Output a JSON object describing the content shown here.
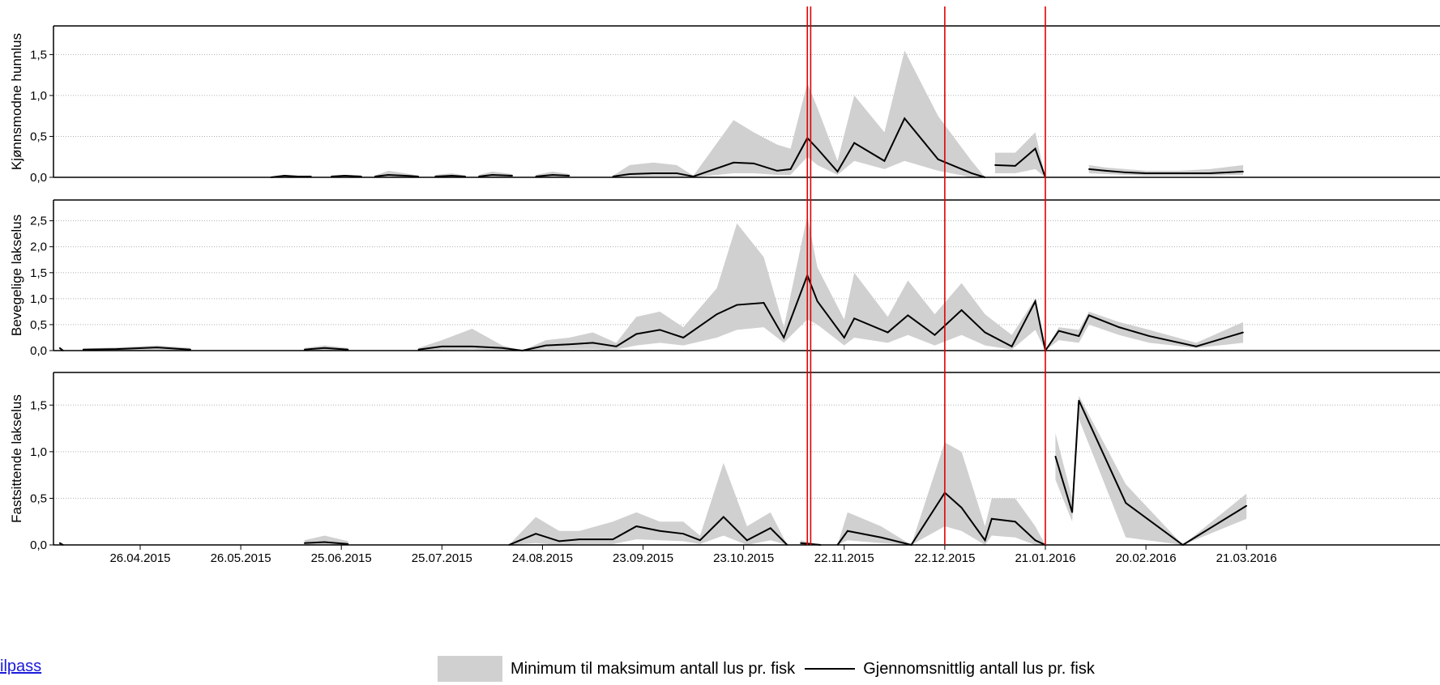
{
  "chart_data": {
    "type": "area",
    "x_ticks": [
      "26.04.2015",
      "26.05.2015",
      "25.06.2015",
      "25.07.2015",
      "24.08.2015",
      "23.09.2015",
      "23.10.2015",
      "22.11.2015",
      "22.12.2015",
      "21.01.2016",
      "20.02.2016",
      "21.03.2016"
    ],
    "treatment_dates": [
      "11.11.2015",
      "12.11.2015",
      "22.12.2015",
      "21.01.2016"
    ],
    "treatment_color": "#e00000",
    "band_color": "#d0d0d0",
    "line_color": "#000000",
    "panels": [
      {
        "ylabel": "Kjønnsmodne hunnlus",
        "ylim": [
          0,
          1.85
        ],
        "yticks": [
          "0,0",
          "0,5",
          "1,0",
          "1,5"
        ],
        "ytick_values": [
          0,
          0.5,
          1.0,
          1.5
        ],
        "segments": [
          [
            [
              "04.06.2015",
              0,
              0,
              0
            ],
            [
              "08.06.2015",
              0.02,
              0.01,
              0.03
            ],
            [
              "12.06.2015",
              0.01,
              0,
              0.02
            ],
            [
              "16.06.2015",
              0.01,
              0,
              0.02
            ]
          ],
          [
            [
              "22.06.2015",
              0.01,
              0,
              0.02
            ],
            [
              "26.06.2015",
              0.02,
              0.01,
              0.03
            ],
            [
              "01.07.2015",
              0.01,
              0,
              0.02
            ]
          ],
          [
            [
              "05.07.2015",
              0.01,
              0,
              0.02
            ],
            [
              "09.07.2015",
              0.03,
              0.01,
              0.08
            ],
            [
              "14.07.2015",
              0.02,
              0,
              0.05
            ],
            [
              "18.07.2015",
              0.01,
              0,
              0.02
            ]
          ],
          [
            [
              "23.07.2015",
              0.01,
              0,
              0.03
            ],
            [
              "28.07.2015",
              0.02,
              0,
              0.05
            ],
            [
              "01.08.2015",
              0.01,
              0,
              0.02
            ]
          ],
          [
            [
              "05.08.2015",
              0.01,
              0,
              0.03
            ],
            [
              "09.08.2015",
              0.03,
              0,
              0.07
            ],
            [
              "15.08.2015",
              0.02,
              0,
              0.04
            ]
          ],
          [
            [
              "22.08.2015",
              0.01,
              0,
              0.03
            ],
            [
              "27.08.2015",
              0.03,
              0,
              0.07
            ],
            [
              "01.09.2015",
              0.02,
              0,
              0.04
            ]
          ],
          [
            [
              "14.09.2015",
              0.01,
              0,
              0.02
            ],
            [
              "19.09.2015",
              0.04,
              0.01,
              0.15
            ],
            [
              "26.09.2015",
              0.05,
              0.01,
              0.18
            ],
            [
              "03.10.2015",
              0.05,
              0.01,
              0.15
            ],
            [
              "08.10.2015",
              0.01,
              0,
              0.02
            ],
            [
              "20.10.2015",
              0.18,
              0.05,
              0.7
            ],
            [
              "26.10.2015",
              0.17,
              0.05,
              0.55
            ],
            [
              "02.11.2015",
              0.08,
              0.03,
              0.4
            ],
            [
              "06.11.2015",
              0.1,
              0.03,
              0.35
            ],
            [
              "11.11.2015",
              0.48,
              0.25,
              1.15
            ],
            [
              "14.11.2015",
              0.35,
              0.15,
              0.85
            ],
            [
              "20.11.2015",
              0.07,
              0.03,
              0.2
            ],
            [
              "25.11.2015",
              0.42,
              0.2,
              1.0
            ],
            [
              "04.12.2015",
              0.2,
              0.1,
              0.55
            ],
            [
              "10.12.2015",
              0.72,
              0.2,
              1.55
            ],
            [
              "20.12.2015",
              0.22,
              0.08,
              0.75
            ],
            [
              "30.12.2015",
              0.05,
              0,
              0.2
            ],
            [
              "03.01.2016",
              0.0,
              0,
              0.0
            ]
          ],
          [
            [
              "06.01.2016",
              0.15,
              0.05,
              0.3
            ],
            [
              "12.01.2016",
              0.14,
              0.05,
              0.3
            ],
            [
              "18.01.2016",
              0.35,
              0.1,
              0.55
            ],
            [
              "21.01.2016",
              0.0,
              0,
              0.0
            ]
          ],
          [
            [
              "03.02.2016",
              0.1,
              0.05,
              0.15
            ],
            [
              "08.02.2016",
              0.08,
              0.04,
              0.12
            ],
            [
              "14.02.2016",
              0.06,
              0.03,
              0.1
            ],
            [
              "20.02.2016",
              0.05,
              0.02,
              0.08
            ],
            [
              "01.03.2016",
              0.05,
              0.02,
              0.08
            ],
            [
              "10.03.2016",
              0.05,
              0.02,
              0.1
            ],
            [
              "20.03.2016",
              0.07,
              0.03,
              0.15
            ]
          ]
        ]
      },
      {
        "ylabel": "Bevegelige lakselus",
        "ylim": [
          0,
          2.9
        ],
        "yticks": [
          "0,0",
          "0,5",
          "1,0",
          "1,5",
          "2,0",
          "2,5"
        ],
        "ytick_values": [
          0,
          0.5,
          1.0,
          1.5,
          2.0,
          2.5
        ],
        "segments": [
          [
            [
              "02.04.2015",
              0.05,
              0,
              0.08
            ],
            [
              "03.04.2015",
              0.0,
              0,
              0.0
            ]
          ],
          [
            [
              "09.04.2015",
              0.02,
              0,
              0.04
            ],
            [
              "19.04.2015",
              0.03,
              0,
              0.06
            ],
            [
              "01.05.2015",
              0.06,
              0.02,
              0.1
            ],
            [
              "11.05.2015",
              0.02,
              0,
              0.05
            ]
          ],
          [
            [
              "14.06.2015",
              0.02,
              0,
              0.05
            ],
            [
              "20.06.2015",
              0.05,
              0.01,
              0.1
            ],
            [
              "27.06.2015",
              0.02,
              0,
              0.05
            ]
          ],
          [
            [
              "18.07.2015",
              0.02,
              0,
              0.05
            ],
            [
              "25.07.2015",
              0.08,
              0.01,
              0.2
            ],
            [
              "03.08.2015",
              0.08,
              0.02,
              0.42
            ],
            [
              "12.08.2015",
              0.05,
              0,
              0.1
            ],
            [
              "18.08.2015",
              0.0,
              0,
              0.0
            ],
            [
              "25.08.2015",
              0.1,
              0.02,
              0.2
            ],
            [
              "01.09.2015",
              0.12,
              0.03,
              0.25
            ],
            [
              "08.09.2015",
              0.15,
              0.03,
              0.35
            ],
            [
              "15.09.2015",
              0.08,
              0.02,
              0.15
            ],
            [
              "21.09.2015",
              0.32,
              0.1,
              0.65
            ],
            [
              "28.09.2015",
              0.4,
              0.15,
              0.75
            ],
            [
              "05.10.2015",
              0.25,
              0.1,
              0.45
            ],
            [
              "15.10.2015",
              0.7,
              0.25,
              1.2
            ],
            [
              "21.10.2015",
              0.88,
              0.4,
              2.45
            ],
            [
              "29.10.2015",
              0.92,
              0.45,
              1.8
            ],
            [
              "04.11.2015",
              0.25,
              0.15,
              0.45
            ],
            [
              "11.11.2015",
              1.45,
              0.6,
              2.6
            ],
            [
              "14.11.2015",
              0.95,
              0.5,
              1.6
            ],
            [
              "22.11.2015",
              0.25,
              0.1,
              0.6
            ],
            [
              "25.11.2015",
              0.62,
              0.25,
              1.5
            ],
            [
              "05.12.2015",
              0.35,
              0.15,
              0.65
            ],
            [
              "11.12.2015",
              0.68,
              0.3,
              1.35
            ],
            [
              "19.12.2015",
              0.3,
              0.1,
              0.7
            ],
            [
              "27.12.2015",
              0.78,
              0.3,
              1.3
            ],
            [
              "03.01.2016",
              0.35,
              0.1,
              0.7
            ],
            [
              "11.01.2016",
              0.08,
              0.02,
              0.3
            ],
            [
              "18.01.2016",
              0.95,
              0.4,
              1.0
            ],
            [
              "21.01.2016",
              0.0,
              0,
              0.0
            ],
            [
              "25.01.2016",
              0.38,
              0.2,
              0.45
            ],
            [
              "31.01.2016",
              0.28,
              0.15,
              0.4
            ],
            [
              "03.02.2016",
              0.68,
              0.5,
              0.75
            ],
            [
              "12.02.2016",
              0.45,
              0.3,
              0.55
            ],
            [
              "21.02.2016",
              0.28,
              0.15,
              0.4
            ],
            [
              "06.03.2016",
              0.08,
              0.05,
              0.15
            ],
            [
              "20.03.2016",
              0.35,
              0.15,
              0.55
            ]
          ]
        ]
      },
      {
        "ylabel": "Fastsittende lakselus",
        "ylim": [
          0,
          1.85
        ],
        "yticks": [
          "0,0",
          "0,5",
          "1,0",
          "1,5"
        ],
        "ytick_values": [
          0,
          0.5,
          1.0,
          1.5
        ],
        "segments": [
          [
            [
              "02.04.2015",
              0.02,
              0,
              0.04
            ],
            [
              "03.04.2015",
              0.0,
              0,
              0.0
            ]
          ],
          [
            [
              "14.06.2015",
              0.02,
              0,
              0.05
            ],
            [
              "20.06.2015",
              0.03,
              0,
              0.1
            ],
            [
              "27.06.2015",
              0.01,
              0,
              0.04
            ]
          ],
          [
            [
              "14.08.2015",
              0.0,
              0,
              0.0
            ],
            [
              "22.08.2015",
              0.12,
              0.02,
              0.3
            ],
            [
              "29.08.2015",
              0.04,
              0,
              0.15
            ],
            [
              "04.09.2015",
              0.06,
              0.01,
              0.15
            ],
            [
              "14.09.2015",
              0.06,
              0.01,
              0.25
            ],
            [
              "21.09.2015",
              0.2,
              0.06,
              0.35
            ],
            [
              "28.09.2015",
              0.15,
              0.05,
              0.25
            ],
            [
              "05.10.2015",
              0.12,
              0.04,
              0.25
            ],
            [
              "10.10.2015",
              0.05,
              0.01,
              0.1
            ],
            [
              "17.10.2015",
              0.3,
              0.1,
              0.88
            ],
            [
              "24.10.2015",
              0.05,
              0,
              0.2
            ],
            [
              "31.10.2015",
              0.18,
              0.05,
              0.35
            ],
            [
              "05.11.2015",
              0.0,
              0,
              0.0
            ]
          ],
          [
            [
              "09.11.2015",
              0.02,
              0,
              0.05
            ],
            [
              "15.11.2015",
              0.0,
              0,
              0.0
            ]
          ],
          [
            [
              "20.11.2015",
              0.0,
              0,
              0.0
            ],
            [
              "23.11.2015",
              0.15,
              0.05,
              0.35
            ],
            [
              "03.12.2015",
              0.08,
              0.02,
              0.2
            ],
            [
              "12.12.2015",
              0.0,
              0,
              0.0
            ],
            [
              "22.12.2015",
              0.56,
              0.2,
              1.1
            ],
            [
              "27.12.2015",
              0.4,
              0.15,
              1.0
            ],
            [
              "03.01.2016",
              0.05,
              0,
              0.2
            ],
            [
              "05.01.2016",
              0.28,
              0.1,
              0.5
            ],
            [
              "12.01.2016",
              0.25,
              0.08,
              0.5
            ],
            [
              "18.01.2016",
              0.05,
              0,
              0.2
            ],
            [
              "21.01.2016",
              0.0,
              0,
              0.0
            ]
          ],
          [
            [
              "24.01.2016",
              0.95,
              0.7,
              1.2
            ],
            [
              "29.01.2016",
              0.35,
              0.25,
              0.5
            ],
            [
              "31.01.2016",
              1.55,
              1.35,
              1.6
            ],
            [
              "14.02.2016",
              0.45,
              0.08,
              0.65
            ],
            [
              "02.03.2016",
              0.0,
              0,
              0.0
            ],
            [
              "21.03.2016",
              0.42,
              0.28,
              0.55
            ]
          ]
        ]
      }
    ],
    "legend": [
      "Minimum til maksimum antall lus pr. fisk",
      "Gjennomsnittlig antall lus pr. fisk"
    ]
  },
  "link_label": "ilpass"
}
